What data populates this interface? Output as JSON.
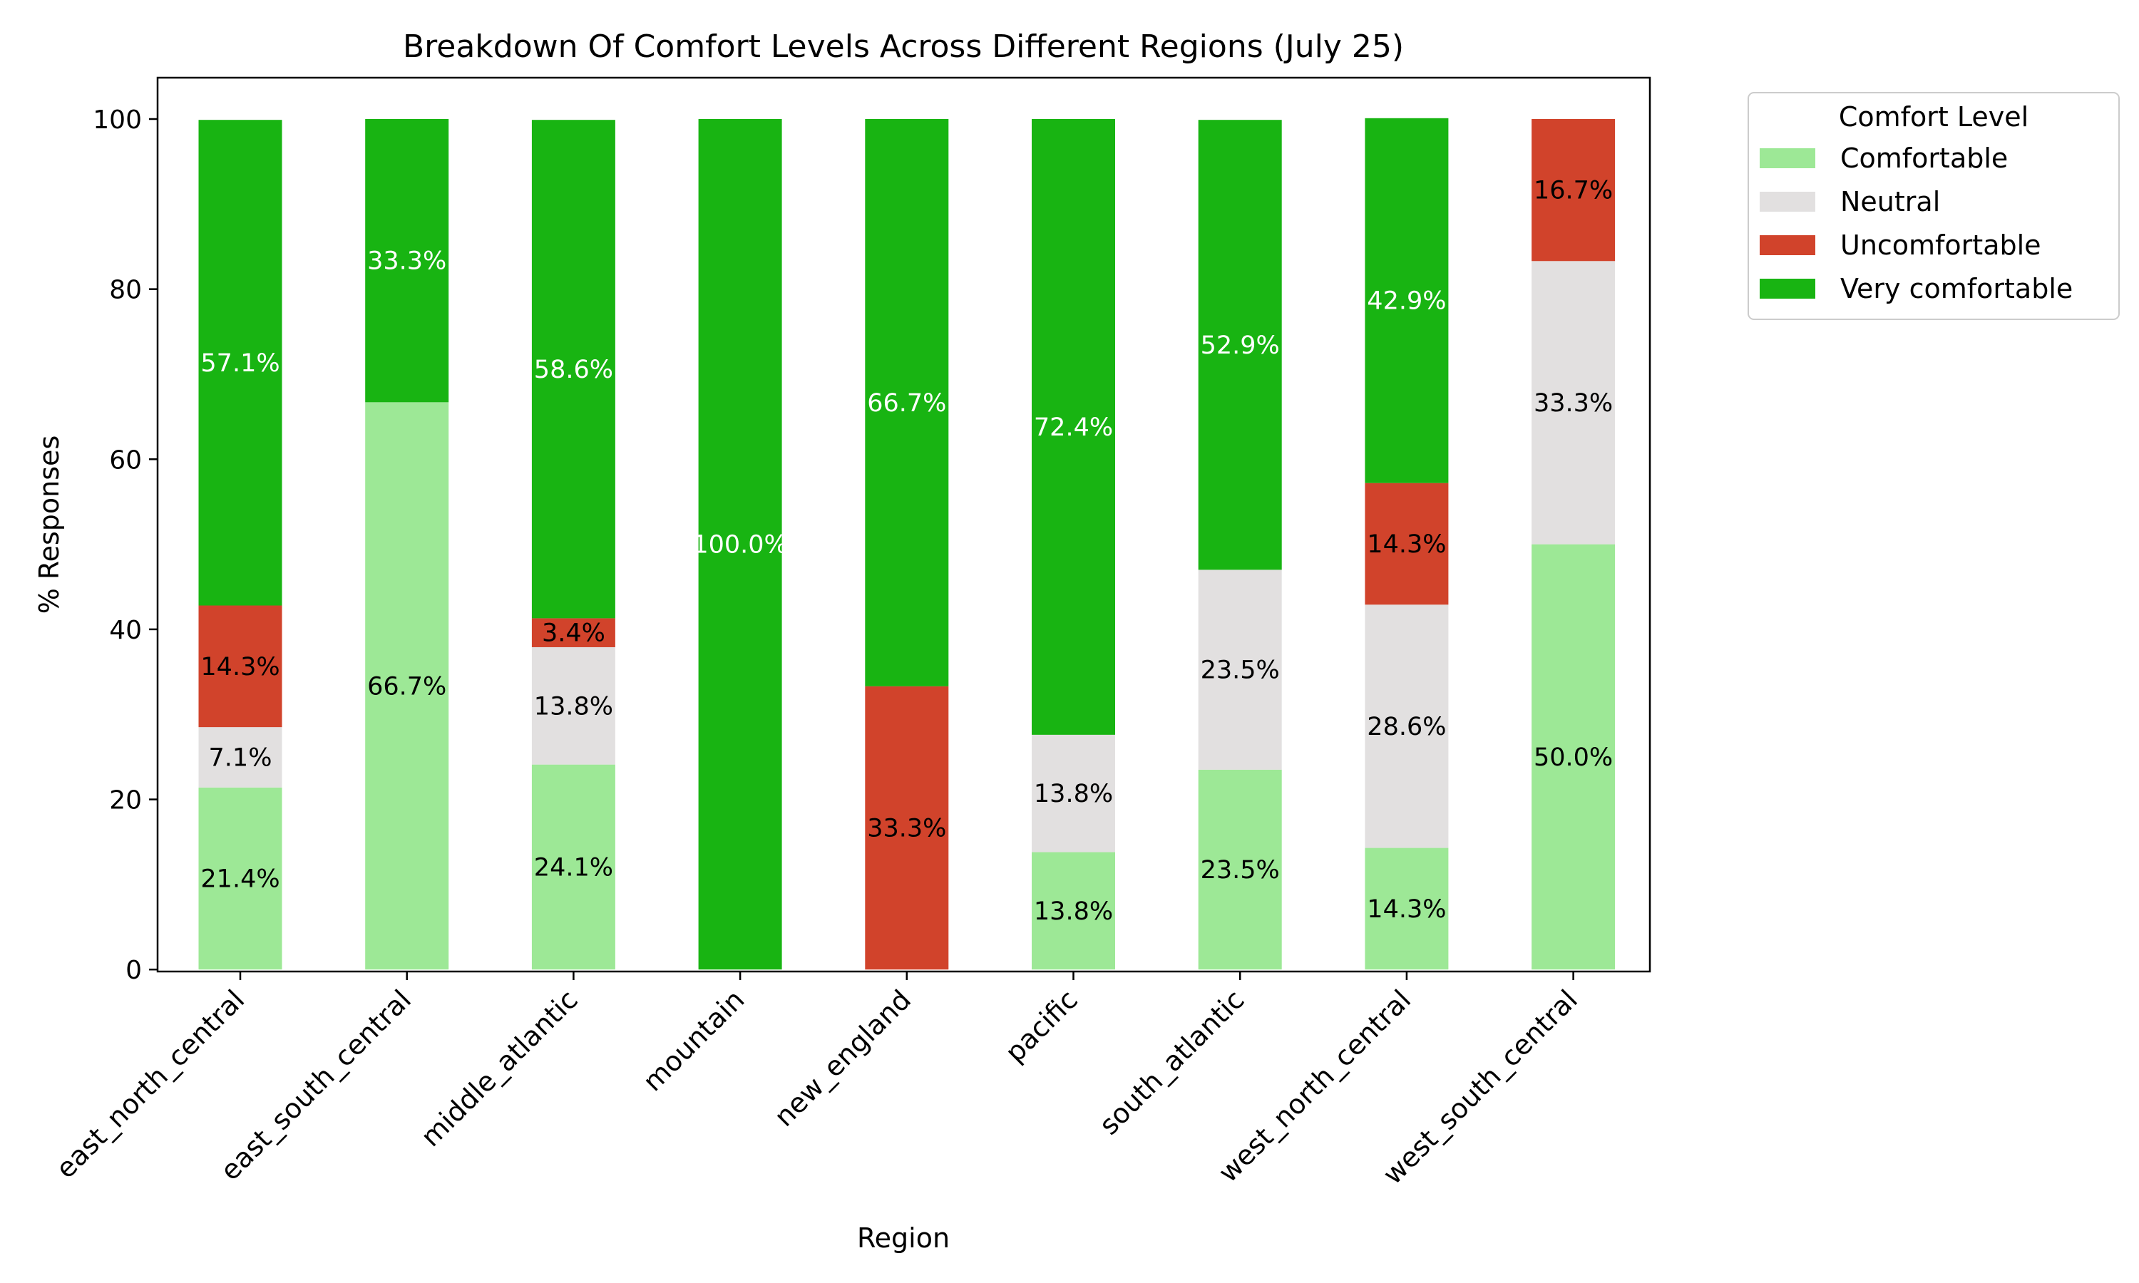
{
  "chart_data": {
    "type": "bar",
    "stacked": true,
    "title": "Breakdown Of Comfort Levels Across Different Regions (July 25)",
    "xlabel": "Region",
    "ylabel": "% Responses",
    "ylim": [
      0,
      104
    ],
    "yticks": [
      0,
      20,
      40,
      60,
      80,
      100
    ],
    "grid": false,
    "legend": {
      "title": "Comfort Level",
      "placement": "outside top-right"
    },
    "categories": [
      "east_north_central",
      "east_south_central",
      "middle_atlantic",
      "mountain",
      "new_england",
      "pacific",
      "south_atlantic",
      "west_north_central",
      "west_south_central"
    ],
    "series": [
      {
        "name": "Comfortable",
        "color": "#9de896",
        "label_color": "#000000",
        "values": [
          21.4,
          66.7,
          24.1,
          0,
          0,
          13.8,
          23.5,
          14.3,
          50.0
        ]
      },
      {
        "name": "Neutral",
        "color": "#e2e0e0",
        "label_color": "#000000",
        "values": [
          7.1,
          0,
          13.8,
          0,
          0,
          13.8,
          23.5,
          28.6,
          33.3
        ]
      },
      {
        "name": "Uncomfortable",
        "color": "#d1432b",
        "label_color": "#000000",
        "values": [
          14.3,
          0,
          3.4,
          0,
          33.3,
          0,
          0,
          14.3,
          16.7
        ]
      },
      {
        "name": "Very comfortable",
        "color": "#18b412",
        "label_color": "#ffffff",
        "values": [
          57.1,
          33.3,
          58.6,
          100.0,
          66.7,
          72.4,
          52.9,
          42.9,
          0
        ]
      }
    ]
  }
}
